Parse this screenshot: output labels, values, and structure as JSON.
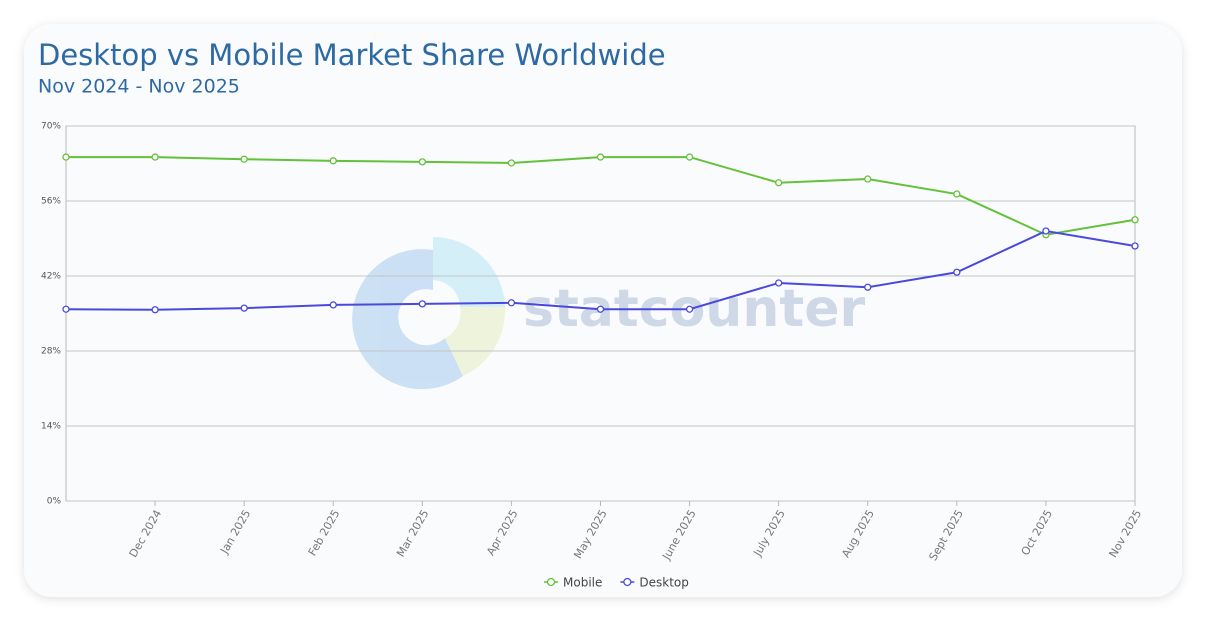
{
  "chart_data": {
    "type": "line",
    "title": "Desktop vs Mobile Market Share Worldwide",
    "subtitle": "Nov 2024 - Nov 2025",
    "watermark": "statcounter",
    "categories": [
      null,
      "Dec 2024",
      "Jan 2025",
      "Feb 2025",
      "Mar 2025",
      "Apr 2025",
      "May 2025",
      "June 2025",
      "July 2025",
      "Aug 2025",
      "Sept 2025",
      "Oct 2025",
      "Nov 2025"
    ],
    "series": [
      {
        "name": "Mobile",
        "color": "#63c13a",
        "values": [
          64.2,
          64.2,
          63.8,
          63.5,
          63.3,
          63.1,
          64.2,
          64.2,
          59.4,
          60.1,
          57.3,
          49.7,
          52.5
        ]
      },
      {
        "name": "Desktop",
        "color": "#4a49dc",
        "values": [
          35.8,
          35.7,
          36.0,
          36.6,
          36.8,
          37.0,
          35.8,
          35.8,
          40.7,
          39.9,
          42.7,
          50.4,
          47.6
        ]
      }
    ],
    "ylim": [
      0,
      70
    ],
    "yticks": [
      {
        "value": 0,
        "label": "0%"
      },
      {
        "value": 14,
        "label": "14%"
      },
      {
        "value": 28,
        "label": "28%"
      },
      {
        "value": 42,
        "label": "42%"
      },
      {
        "value": 56,
        "label": "56%"
      },
      {
        "value": 70,
        "label": "70%"
      }
    ],
    "grid": true
  }
}
